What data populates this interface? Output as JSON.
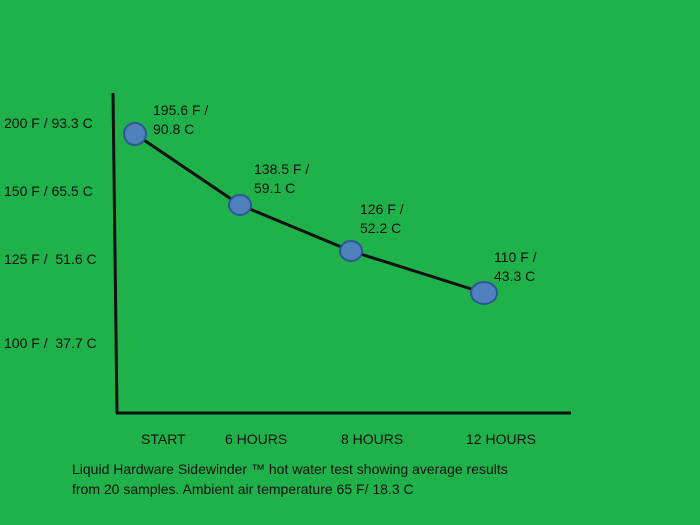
{
  "chart_data": {
    "type": "line",
    "categories": [
      "START",
      "6 HOURS",
      "8  HOURS",
      "12 HOURS"
    ],
    "y_tick_labels": [
      "200 F / 93.3 C",
      "150 F / 65.5 C",
      "125 F /  51.6 C",
      "100 F /  37.7 C"
    ],
    "series": [
      {
        "values": [
          195.6,
          138.5,
          126,
          110
        ],
        "data_labels": [
          [
            "195.6 F /",
            "90.8 C"
          ],
          [
            "138.5 F /",
            "59.1 C"
          ],
          [
            "126 F /",
            "52.2 C"
          ],
          [
            "110 F /",
            "43.3 C"
          ]
        ]
      }
    ],
    "caption": [
      "Liquid Hardware Sidewinder ™ hot water test showing average results",
      "from 20 samples.  Ambient air temperature 65 F/ 18.3 C"
    ],
    "grid": false,
    "colors": {
      "background": "#1fb24a",
      "marker_fill": "#4f81bd",
      "marker_stroke": "#2f5597",
      "line": "#111111"
    }
  }
}
